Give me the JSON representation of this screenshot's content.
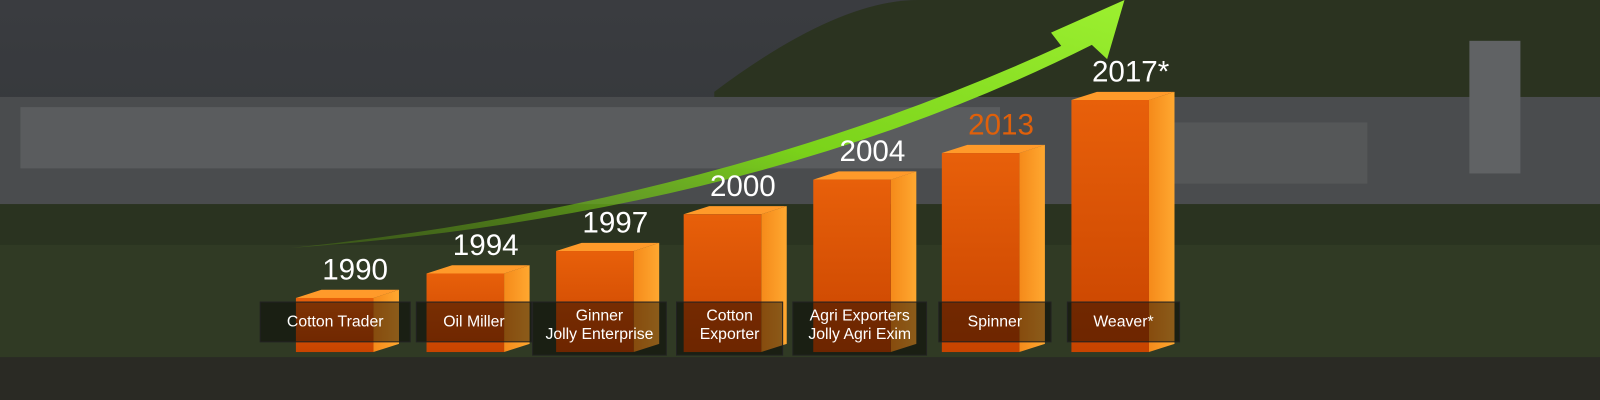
{
  "milestones": [
    {
      "year": "1990",
      "year_color": "#ffffff",
      "label": [
        "Cotton Trader"
      ]
    },
    {
      "year": "1994",
      "year_color": "#ffffff",
      "label": [
        "Oil Miller"
      ]
    },
    {
      "year": "1997",
      "year_color": "#ffffff",
      "label": [
        "Ginner",
        "Jolly Enterprise"
      ]
    },
    {
      "year": "2000",
      "year_color": "#ffffff",
      "label": [
        "Cotton",
        "Exporter"
      ]
    },
    {
      "year": "2004",
      "year_color": "#ffffff",
      "label": [
        "Agri Exporters",
        "Jolly Agri Exim"
      ]
    },
    {
      "year": "2013",
      "year_color": "#e0600a",
      "label": [
        "Spinner"
      ]
    },
    {
      "year": "2017*",
      "year_color": "#ffffff",
      "label": [
        "Weaver*"
      ]
    }
  ]
}
